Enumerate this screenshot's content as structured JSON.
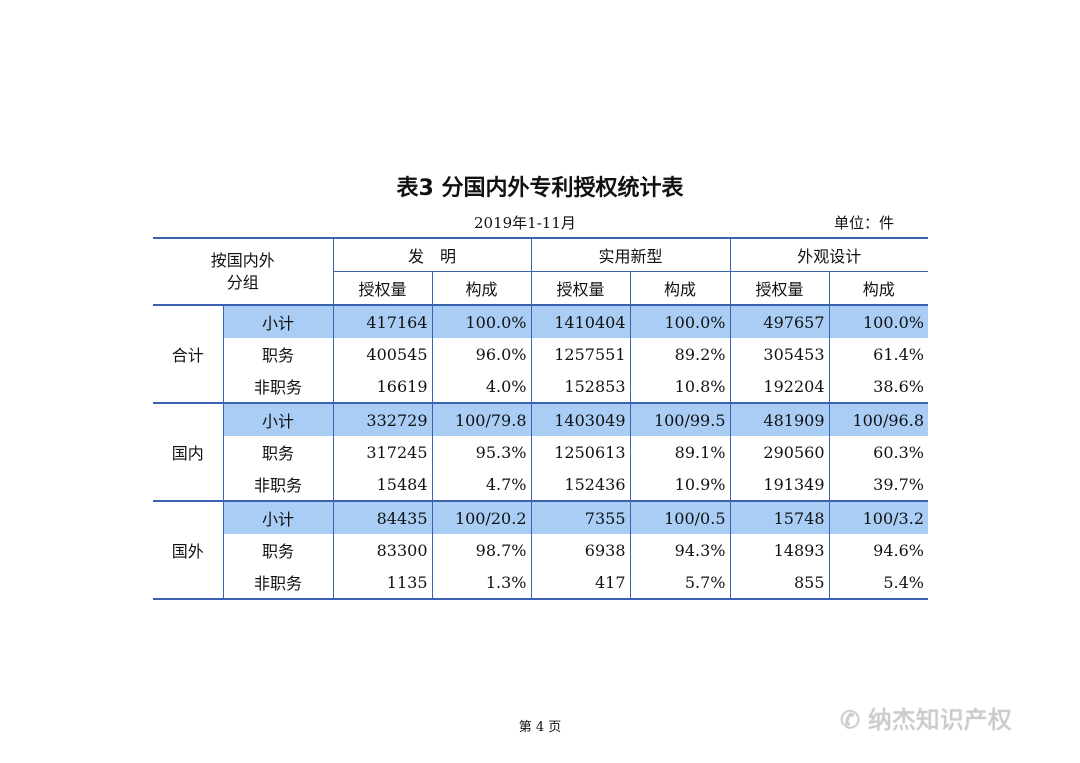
{
  "title": "表3  分国内外专利授权统计表",
  "period": "2019年1-11月",
  "unit": "单位：件",
  "header": {
    "group": "按国内外分组",
    "types": [
      "发　明",
      "实用新型",
      "外观设计"
    ],
    "sub": [
      "授权量",
      "构成"
    ]
  },
  "groups": [
    {
      "name": "合计",
      "rows": [
        {
          "label": "小计",
          "values": [
            "417164",
            "100.0%",
            "1410404",
            "100.0%",
            "497657",
            "100.0%"
          ]
        },
        {
          "label": "职务",
          "values": [
            "400545",
            "96.0%",
            "1257551",
            "89.2%",
            "305453",
            "61.4%"
          ]
        },
        {
          "label": "非职务",
          "values": [
            "16619",
            "4.0%",
            "152853",
            "10.8%",
            "192204",
            "38.6%"
          ]
        }
      ]
    },
    {
      "name": "国内",
      "rows": [
        {
          "label": "小计",
          "values": [
            "332729",
            "100/79.8",
            "1403049",
            "100/99.5",
            "481909",
            "100/96.8"
          ]
        },
        {
          "label": "职务",
          "values": [
            "317245",
            "95.3%",
            "1250613",
            "89.1%",
            "290560",
            "60.3%"
          ]
        },
        {
          "label": "非职务",
          "values": [
            "15484",
            "4.7%",
            "152436",
            "10.9%",
            "191349",
            "39.7%"
          ]
        }
      ]
    },
    {
      "name": "国外",
      "rows": [
        {
          "label": "小计",
          "values": [
            "84435",
            "100/20.2",
            "7355",
            "100/0.5",
            "15748",
            "100/3.2"
          ]
        },
        {
          "label": "职务",
          "values": [
            "83300",
            "98.7%",
            "6938",
            "94.3%",
            "14893",
            "94.6%"
          ]
        },
        {
          "label": "非职务",
          "values": [
            "1135",
            "1.3%",
            "417",
            "5.7%",
            "855",
            "5.4%"
          ]
        }
      ]
    }
  ],
  "footer": "第 4 页",
  "watermark": "纳杰知识产权",
  "colors": {
    "border": "#3a62b0",
    "highlight": "#a9cdf5"
  }
}
